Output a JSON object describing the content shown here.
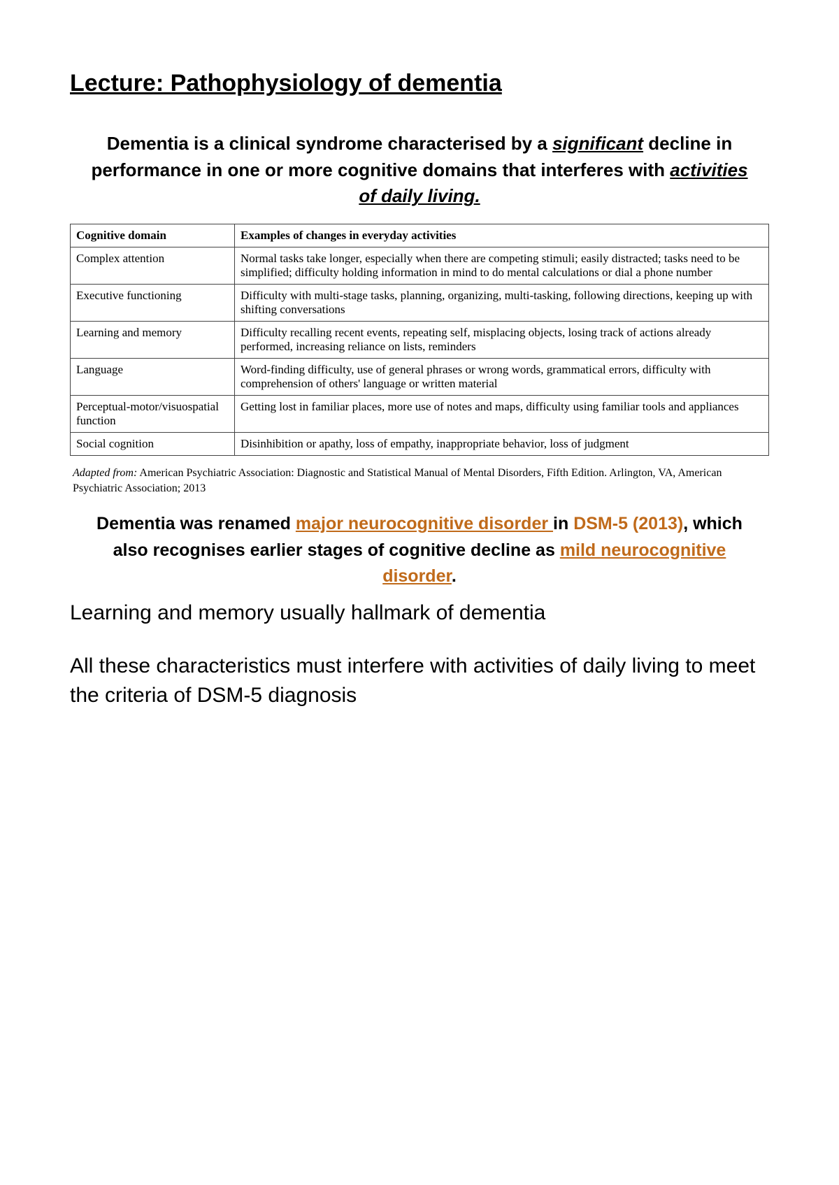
{
  "title": "Lecture: Pathophysiology of dementia",
  "definition": {
    "pre": "Dementia is a clinical syndrome characterised by a ",
    "em1": "significant",
    "mid": " decline in performance in one or more cognitive domains that interferes with ",
    "em2": "activities of daily living."
  },
  "table": {
    "header_col1": "Cognitive domain",
    "header_col2": "Examples of changes in everyday activities",
    "rows": [
      {
        "domain": "Complex attention",
        "examples": "Normal tasks take longer, especially when there are competing stimuli; easily distracted; tasks need to be simplified; difficulty holding information in mind to do mental calculations or dial a phone number"
      },
      {
        "domain": "Executive functioning",
        "examples": "Difficulty with multi-stage tasks, planning, organizing, multi-tasking, following directions, keeping up with shifting conversations"
      },
      {
        "domain": "Learning and memory",
        "examples": "Difficulty recalling recent events, repeating self, misplacing objects, losing track of actions already performed, increasing reliance on lists, reminders"
      },
      {
        "domain": "Language",
        "examples": "Word-finding difficulty, use of general phrases or wrong words, grammatical errors, difficulty with comprehension of others' language or written material"
      },
      {
        "domain": "Perceptual-motor/visuospatial function",
        "examples": "Getting lost in familiar places, more use of notes and maps, difficulty using familiar tools and appliances"
      },
      {
        "domain": "Social cognition",
        "examples": "Disinhibition or apathy, loss of empathy, inappropriate behavior, loss of judgment"
      }
    ]
  },
  "caption": {
    "adapted": "Adapted from:",
    "rest": " American Psychiatric Association: Diagnostic and Statistical Manual of Mental Disorders, Fifth Edition. Arlington, VA, American Psychiatric Association; 2013"
  },
  "renamed": {
    "t1": "Dementia was renamed ",
    "link1": "major neurocognitive disorder ",
    "t2": "in ",
    "dsm": "DSM-5 (2013)",
    "t3": ", which also recognises earlier stages of cognitive decline as ",
    "link2": "mild neurocognitive disorder",
    "t4": "."
  },
  "para1": "Learning and memory usually hallmark of dementia",
  "para2": "All these characteristics must interfere with activities of daily living to meet the criteria of DSM-5 diagnosis"
}
